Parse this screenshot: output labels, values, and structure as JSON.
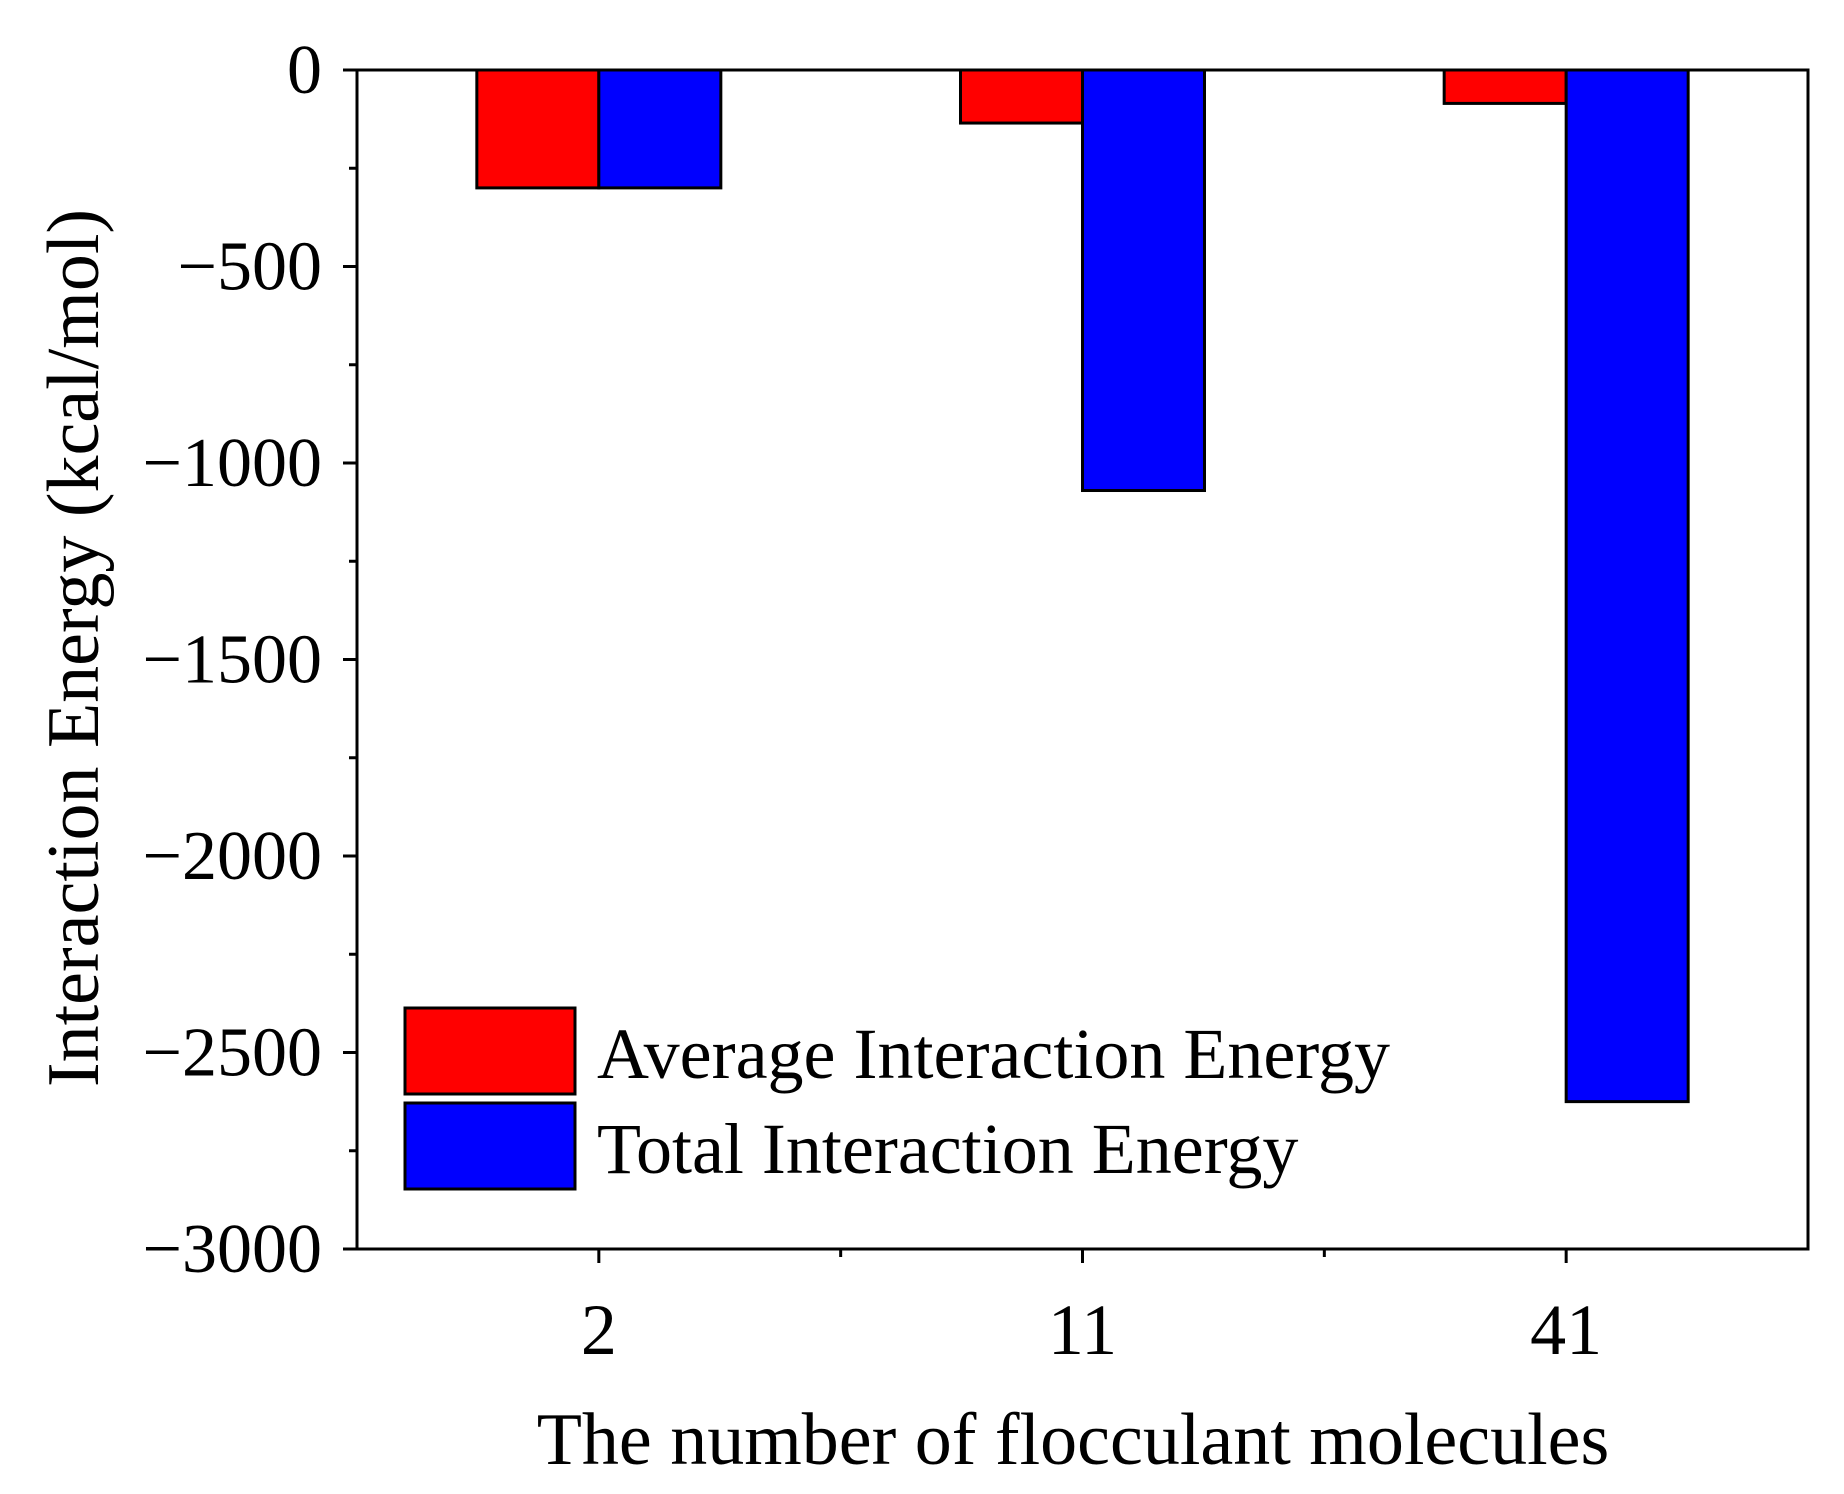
{
  "chart_data": {
    "type": "bar",
    "title": "",
    "xlabel": "The number of flocculant molecules",
    "ylabel": "Interaction Energy (kcal/mol)",
    "categories": [
      "2",
      "11",
      "41"
    ],
    "series": [
      {
        "name": "Average Interaction Energy",
        "color": "#ff0000",
        "values": [
          -300,
          -135,
          -85
        ]
      },
      {
        "name": "Total Interaction Energy",
        "color": "#0000ff",
        "values": [
          -300,
          -1070,
          -2625
        ]
      }
    ],
    "ylim": [
      -3000,
      0
    ],
    "y_ticks": [
      0,
      -500,
      -1000,
      -1500,
      -2000,
      -2500,
      -3000
    ],
    "y_tick_labels": [
      "0",
      "−500",
      "−1000",
      "−1500",
      "−2000",
      "−2500",
      "−3000"
    ],
    "legend_position": "bottom-left",
    "grid": false
  }
}
